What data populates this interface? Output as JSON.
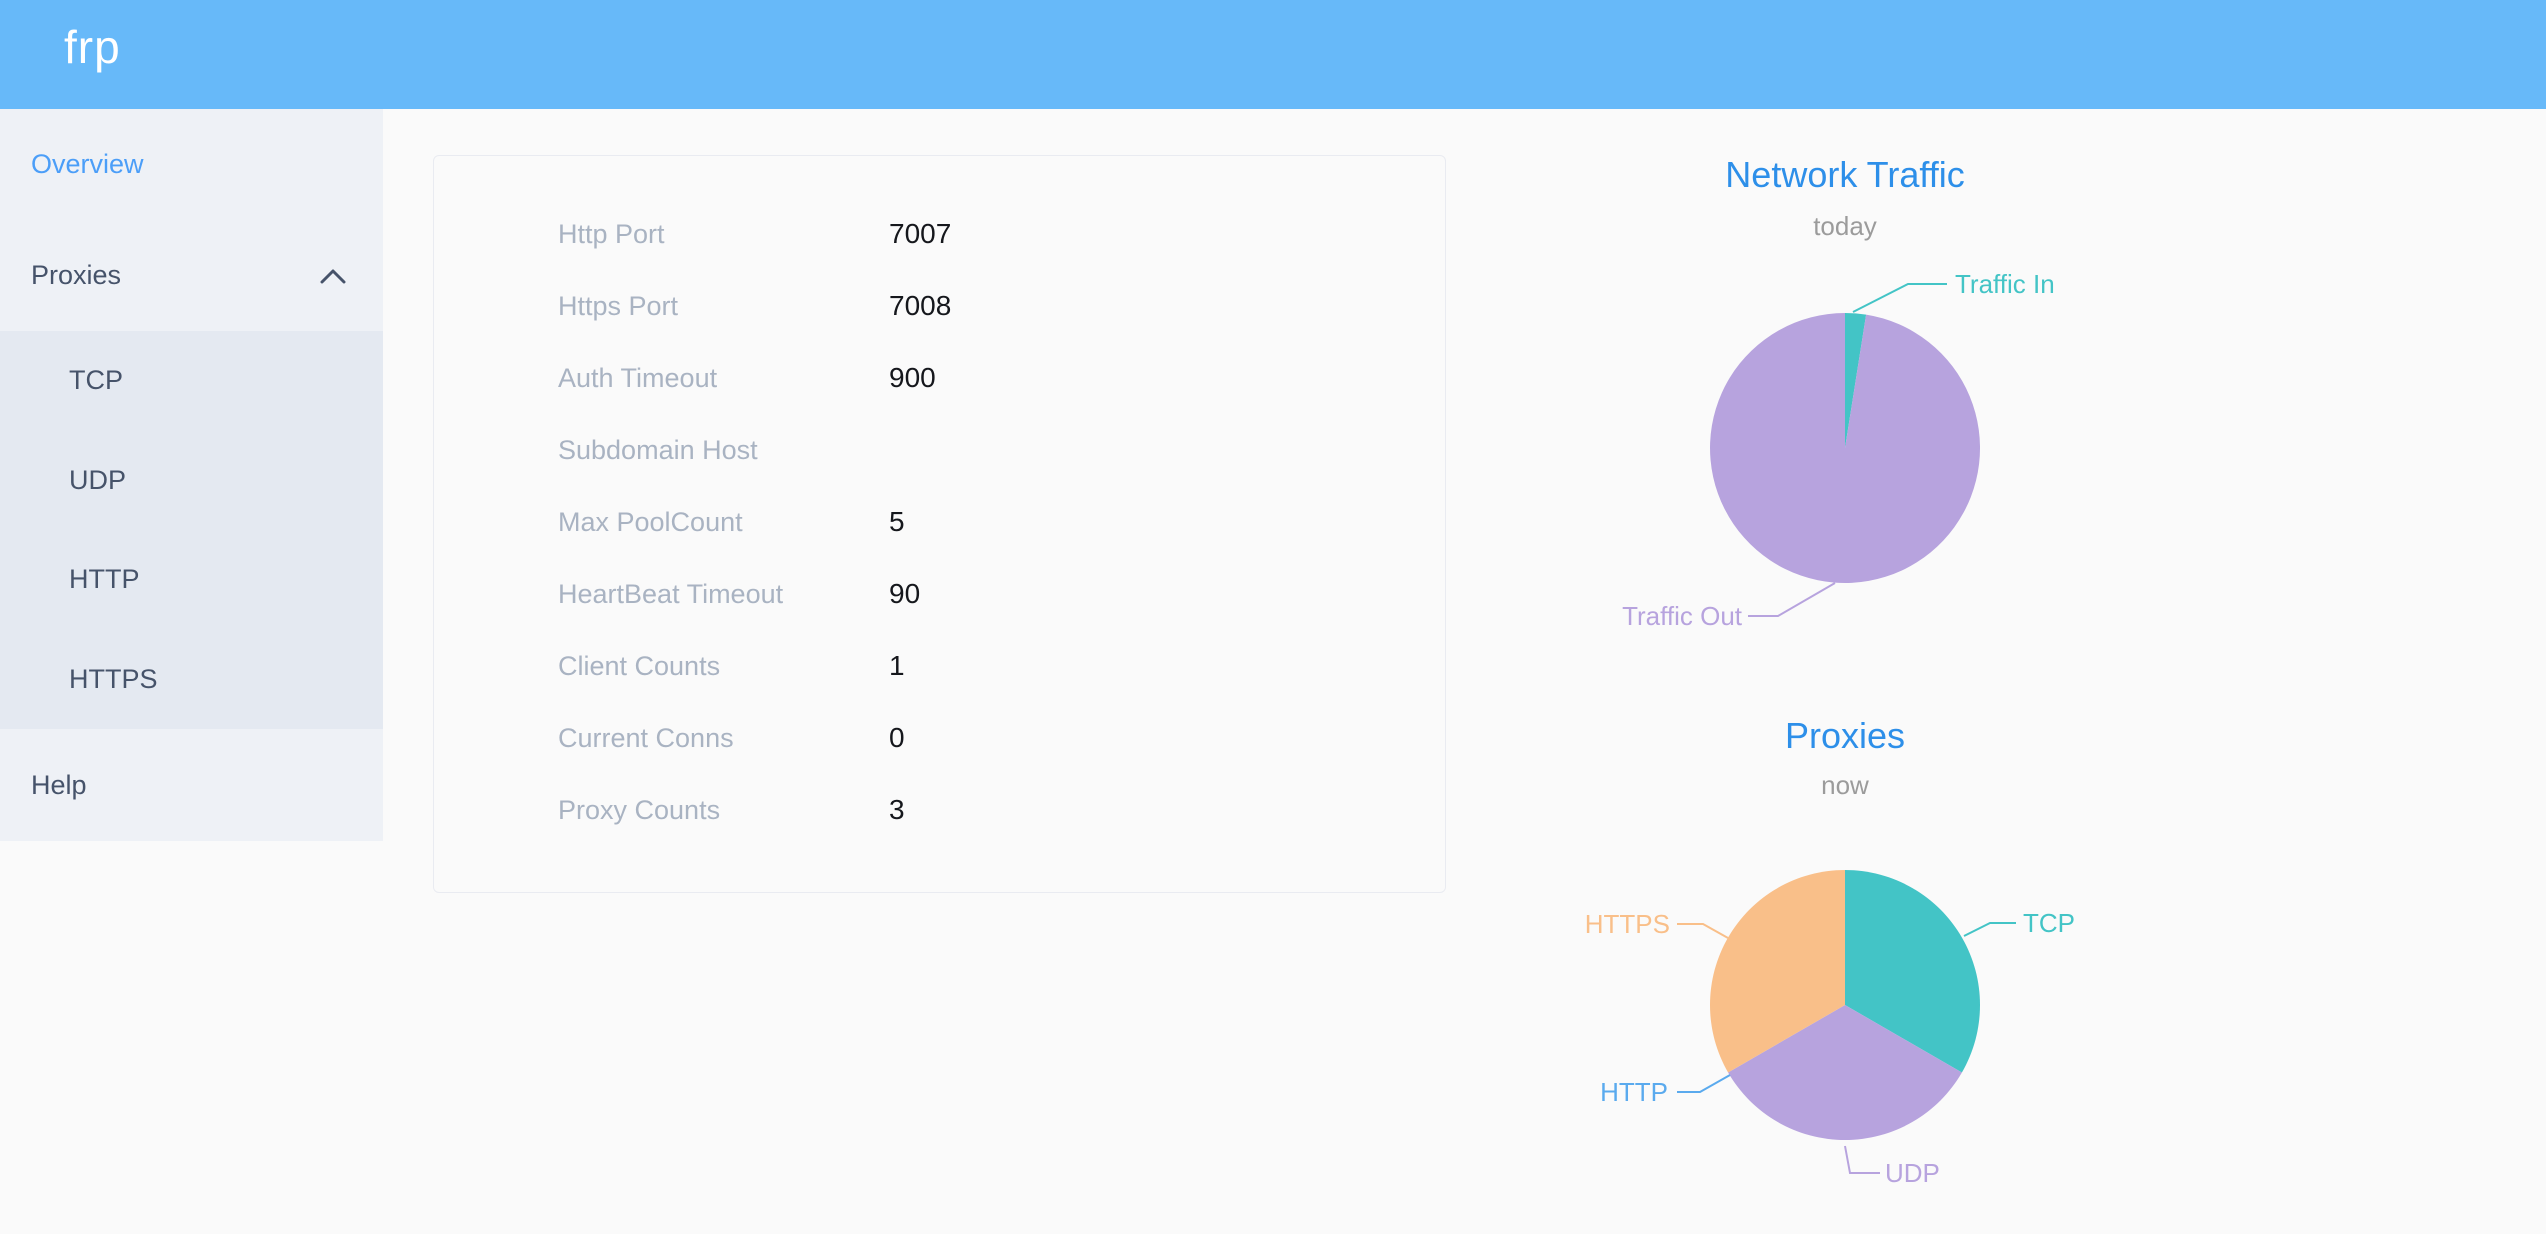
{
  "app": {
    "logo_text": "frp"
  },
  "theme": {
    "header_bg": "#67b9f9",
    "title_blue": "#2d8fe9",
    "active_blue": "#4b9ef8",
    "sidebar_text": "#46536a",
    "teal": "#43c4c6",
    "purple": "#b7a3de",
    "orange": "#f9bf89",
    "http_blue": "#5aaaee",
    "subtitle_gray": "#9b9b9b"
  },
  "sidebar": {
    "items": [
      {
        "id": "overview",
        "label": "Overview",
        "active": true
      },
      {
        "id": "proxies",
        "label": "Proxies",
        "expanded": true,
        "children": [
          {
            "label": "TCP"
          },
          {
            "label": "UDP"
          },
          {
            "label": "HTTP"
          },
          {
            "label": "HTTPS"
          }
        ]
      },
      {
        "id": "help",
        "label": "Help"
      }
    ]
  },
  "server_info": {
    "rows": [
      {
        "label": "Http Port",
        "value": "7007"
      },
      {
        "label": "Https Port",
        "value": "7008"
      },
      {
        "label": "Auth Timeout",
        "value": "900"
      },
      {
        "label": "Subdomain Host",
        "value": ""
      },
      {
        "label": "Max PoolCount",
        "value": "5"
      },
      {
        "label": "HeartBeat Timeout",
        "value": "90"
      },
      {
        "label": "Client Counts",
        "value": "1"
      },
      {
        "label": "Current Conns",
        "value": "0"
      },
      {
        "label": "Proxy Counts",
        "value": "3"
      }
    ]
  },
  "chart_data": [
    {
      "type": "pie",
      "title": "Network Traffic",
      "subtitle": "today",
      "legend_position": "none",
      "series": [
        {
          "name": "Traffic In",
          "value": 2.5,
          "color": "#43c4c6"
        },
        {
          "name": "Traffic Out",
          "value": 97.5,
          "color": "#b7a3de"
        }
      ]
    },
    {
      "type": "pie",
      "title": "Proxies",
      "subtitle": "now",
      "legend_position": "none",
      "series": [
        {
          "name": "TCP",
          "value": 1,
          "color": "#43c4c6"
        },
        {
          "name": "UDP",
          "value": 1,
          "color": "#b7a3de"
        },
        {
          "name": "HTTP",
          "value": 0,
          "color": "#5aaaee"
        },
        {
          "name": "HTTPS",
          "value": 1,
          "color": "#f9bf89"
        }
      ]
    }
  ]
}
